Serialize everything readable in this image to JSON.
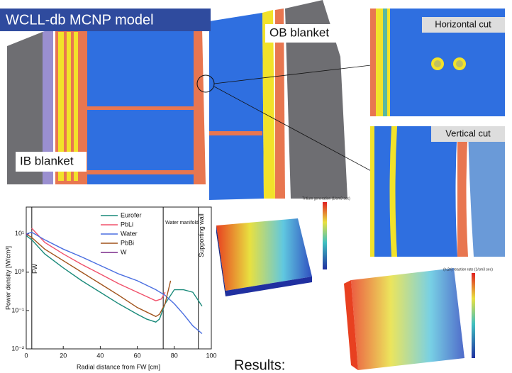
{
  "slide": {
    "title": "WCLL-db MCNP model",
    "ob_label": "OB blanket",
    "ib_label": "IB blanket",
    "horizontal_cut": "Horizontal cut",
    "vertical_cut": "Vertical cut",
    "results": "Results:",
    "tritium_colorbar_title": "Tritium generation (1/cm3 sec)",
    "n2n_colorbar_title": "(n,2n) reaction rate (1/cm3 sec)"
  },
  "chart_data": {
    "type": "line",
    "y_label": "Power density [W/cm³]",
    "x_label": "Radial distance from FW [cm]",
    "xlim": [
      0,
      100
    ],
    "xticks": [
      0,
      20,
      40,
      60,
      80,
      100
    ],
    "ylim": [
      0.01,
      50
    ],
    "log_scale": true,
    "yticks": [
      {
        "value": 0.01,
        "label": "10⁻²"
      },
      {
        "value": 0.1,
        "label": "10⁻¹"
      },
      {
        "value": 1,
        "label": "10⁰"
      },
      {
        "value": 10,
        "label": "10¹"
      }
    ],
    "annotations": [
      {
        "text": "FW",
        "x": 3
      },
      {
        "text": "Water manifold",
        "x": 74
      },
      {
        "text": "Supporting wall",
        "x": 93
      }
    ],
    "series": [
      {
        "name": "Eurofer",
        "color": "#1a8a7a",
        "x": [
          0,
          3,
          10,
          20,
          30,
          40,
          50,
          60,
          65,
          70,
          72,
          75,
          80,
          85,
          90,
          95
        ],
        "values": [
          9,
          7,
          3,
          1.3,
          0.6,
          0.3,
          0.15,
          0.08,
          0.06,
          0.05,
          0.06,
          0.15,
          0.35,
          0.35,
          0.3,
          0.13
        ]
      },
      {
        "name": "PbLi",
        "color": "#f0506a",
        "x": [
          3,
          10,
          20,
          30,
          40,
          50,
          60,
          70,
          73,
          75
        ],
        "values": [
          14,
          6,
          3,
          1.6,
          0.9,
          0.5,
          0.3,
          0.18,
          0.2,
          0.3
        ]
      },
      {
        "name": "Water",
        "color": "#4a6ee0",
        "x": [
          0,
          3,
          10,
          20,
          30,
          40,
          50,
          60,
          70,
          75,
          80,
          85,
          90,
          95
        ],
        "values": [
          10,
          11,
          7,
          4,
          2.5,
          1.5,
          0.9,
          0.6,
          0.35,
          0.25,
          0.15,
          0.08,
          0.04,
          0.025
        ]
      },
      {
        "name": "PbBi",
        "color": "#a0521a",
        "x": [
          0,
          3,
          10,
          20,
          30,
          40,
          50,
          60,
          70,
          72,
          75,
          78
        ],
        "values": [
          10,
          8,
          4,
          2,
          1,
          0.5,
          0.25,
          0.12,
          0.07,
          0.08,
          0.15,
          0.6
        ]
      },
      {
        "name": "W",
        "color": "#7a2a8a",
        "x": [
          0,
          1
        ],
        "values": [
          10,
          9
        ]
      }
    ]
  }
}
